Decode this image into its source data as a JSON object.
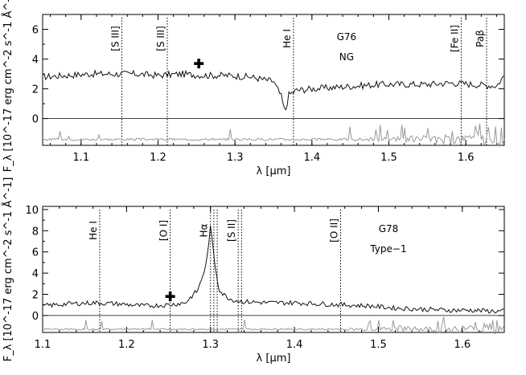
{
  "chart_data": [
    {
      "type": "line",
      "panel": "top",
      "object": "G76",
      "subtitle": "NG",
      "xlabel": "λ [μm]",
      "ylabel": "F_λ [10^-17 erg cm^-2 s^-1 Å^-1]",
      "xlim": [
        1.05,
        1.65
      ],
      "ylim": [
        -1.8,
        7
      ],
      "xticks": [
        1.1,
        1.2,
        1.3,
        1.4,
        1.5,
        1.6
      ],
      "xtick_labels": [
        "1.1",
        "1.2",
        "1.3",
        "1.4",
        "1.5",
        "1.6"
      ],
      "yticks": [
        0,
        2,
        4,
        6
      ],
      "ytick_labels": [
        "0",
        "2",
        "4",
        "6"
      ],
      "marker": {
        "x": 1.253,
        "y": 3.7,
        "symbol": "plus"
      },
      "lines": [
        {
          "x": 1.153,
          "label": "[S III]"
        },
        {
          "x": 1.212,
          "label": "[S III]"
        },
        {
          "x": 1.376,
          "label": "He I"
        },
        {
          "x": 1.594,
          "label": "[Fe II]"
        },
        {
          "x": 1.627,
          "label": "Paβ"
        }
      ],
      "spectrum": {
        "x": [
          1.05,
          1.08,
          1.11,
          1.14,
          1.17,
          1.2,
          1.23,
          1.26,
          1.29,
          1.32,
          1.35,
          1.36,
          1.365,
          1.37,
          1.38,
          1.4,
          1.43,
          1.46,
          1.49,
          1.52,
          1.55,
          1.58,
          1.61,
          1.64,
          1.65
        ],
        "y": [
          2.8,
          2.9,
          3.0,
          3.0,
          3.0,
          2.9,
          3.0,
          2.9,
          2.9,
          2.8,
          2.5,
          1.5,
          0.4,
          1.6,
          1.9,
          2.0,
          2.1,
          2.2,
          2.3,
          2.3,
          2.3,
          2.4,
          2.3,
          2.2,
          2.9
        ]
      },
      "residual_baseline": -1.4
    },
    {
      "type": "line",
      "panel": "bottom",
      "object": "G78",
      "subtitle": "Type−1",
      "xlabel": "λ [μm]",
      "ylabel": "F_λ [10^-17 erg cm^-2 s^-1 Å^-1]",
      "xlim": [
        1.1,
        1.65
      ],
      "ylim": [
        -1.6,
        10.3
      ],
      "xticks": [
        1.1,
        1.2,
        1.3,
        1.4,
        1.5,
        1.6
      ],
      "xtick_labels": [
        "1.1",
        "1.2",
        "1.3",
        "1.4",
        "1.5",
        "1.6"
      ],
      "yticks": [
        0,
        2,
        4,
        6,
        8,
        10
      ],
      "ytick_labels": [
        "0",
        "2",
        "4",
        "6",
        "8",
        "10"
      ],
      "marker": {
        "x": 1.252,
        "y": 1.8,
        "symbol": "plus"
      },
      "lines": [
        {
          "x": 1.168,
          "label": "He I"
        },
        {
          "x": 1.252,
          "label": "[O I]"
        },
        {
          "x": 1.3,
          "label": "Hα"
        },
        {
          "x": 1.304,
          "label": ""
        },
        {
          "x": 1.308,
          "label": ""
        },
        {
          "x": 1.333,
          "label": "[S II]"
        },
        {
          "x": 1.337,
          "label": ""
        },
        {
          "x": 1.455,
          "label": "[O II]"
        }
      ],
      "spectrum": {
        "x": [
          1.1,
          1.13,
          1.16,
          1.19,
          1.22,
          1.25,
          1.27,
          1.285,
          1.295,
          1.3,
          1.305,
          1.31,
          1.315,
          1.325,
          1.34,
          1.37,
          1.4,
          1.43,
          1.46,
          1.49,
          1.52,
          1.55,
          1.58,
          1.61,
          1.64,
          1.65
        ],
        "y": [
          0.9,
          1.1,
          1.2,
          1.1,
          0.9,
          1.0,
          1.2,
          2.4,
          4.8,
          8.4,
          5.0,
          2.5,
          2.0,
          1.5,
          1.3,
          1.2,
          1.2,
          1.1,
          1.0,
          0.9,
          0.7,
          0.6,
          0.5,
          0.5,
          0.4,
          0.4
        ]
      },
      "residual_baseline": -1.3
    }
  ]
}
